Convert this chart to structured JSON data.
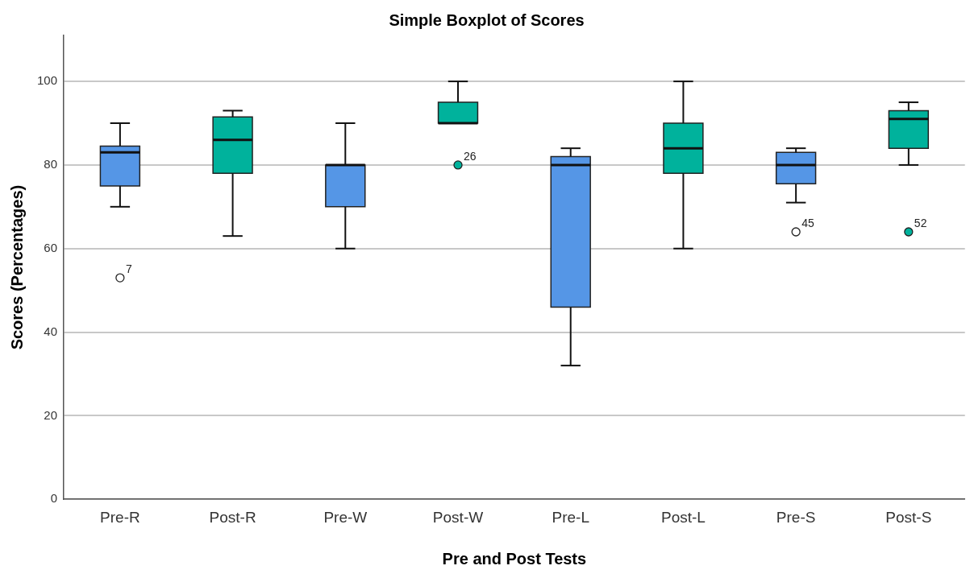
{
  "chart_data": {
    "type": "box",
    "title": "Simple Boxplot of Scores",
    "xlabel": "Pre and Post Tests",
    "ylabel": "Scores (Percentages)",
    "categories": [
      "Pre-R",
      "Post-R",
      "Pre-W",
      "Post-W",
      "Pre-L",
      "Post-L",
      "Pre-S",
      "Post-S"
    ],
    "colors": [
      "#5596e6",
      "#00b29c",
      "#5596e6",
      "#00b29c",
      "#5596e6",
      "#00b29c",
      "#5596e6",
      "#00b29c"
    ],
    "boxes": [
      {
        "low": 70,
        "q1": 75,
        "median": 83,
        "q3": 84.5,
        "high": 90,
        "outliers": [
          53
        ]
      },
      {
        "low": 63,
        "q1": 78,
        "median": 86,
        "q3": 91.5,
        "high": 93
      },
      {
        "low": 60,
        "q1": 70,
        "median": 80,
        "q3": 80,
        "high": 90
      },
      {
        "low": 90,
        "q1": 90,
        "median": 90,
        "q3": 95,
        "high": 100,
        "outliers": [
          80
        ]
      },
      {
        "low": 32,
        "q1": 46,
        "median": 80,
        "q3": 82,
        "high": 84
      },
      {
        "low": 60,
        "q1": 78,
        "median": 84,
        "q3": 90,
        "high": 100
      },
      {
        "low": 71,
        "q1": 75.5,
        "median": 80,
        "q3": 83,
        "high": 84,
        "outliers": [
          64
        ]
      },
      {
        "low": 80,
        "q1": 84,
        "median": 91,
        "q3": 93,
        "high": 95,
        "outliers": [
          64
        ]
      }
    ],
    "annotations": [
      "7",
      "26",
      "45",
      "52"
    ],
    "ylim": [
      0,
      111
    ],
    "yticks": [
      0,
      20,
      40,
      60,
      80,
      100
    ],
    "grid": "y",
    "legend": false
  }
}
